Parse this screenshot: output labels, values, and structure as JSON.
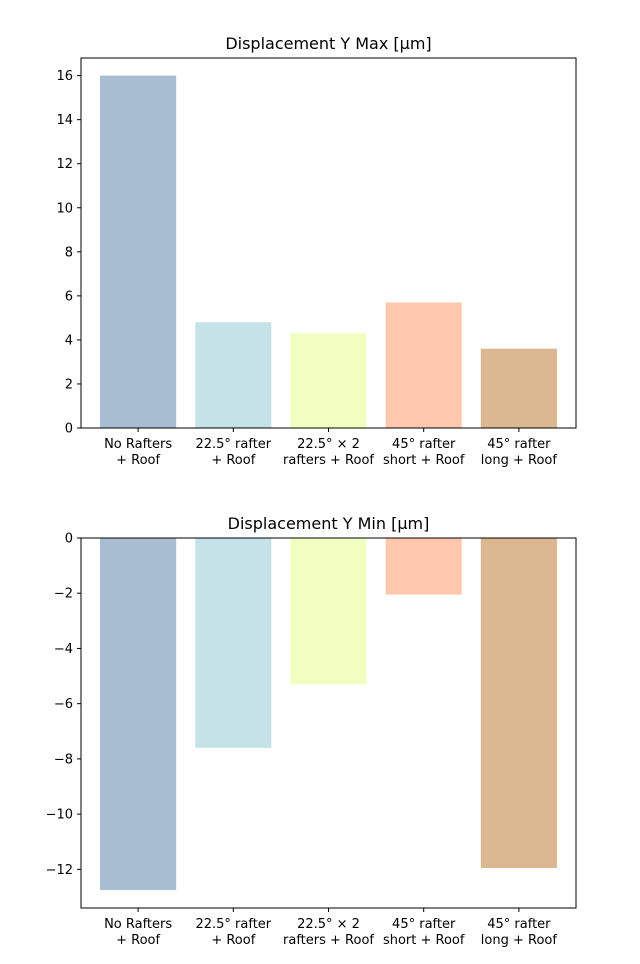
{
  "chart_data": [
    {
      "type": "bar",
      "title": "Displacement Y Max [µm]",
      "xlabel": "",
      "ylabel": "",
      "categories": [
        [
          "No Rafters",
          "+ Roof"
        ],
        [
          "22.5° rafter",
          "+ Roof"
        ],
        [
          "22.5° × 2",
          "rafters + Roof"
        ],
        [
          "45° rafter",
          "short + Roof"
        ],
        [
          "45° rafter",
          "long + Roof"
        ]
      ],
      "values": [
        16.0,
        4.8,
        4.3,
        5.7,
        3.6
      ],
      "colors": [
        "#a8bdd2",
        "#c5e2e8",
        "#f0ffc0",
        "#ffc8ae",
        "#dbb892"
      ],
      "ylim": [
        0,
        16.8
      ],
      "yticks": [
        0,
        2,
        4,
        6,
        8,
        10,
        12,
        14,
        16
      ],
      "ytick_labels": [
        "0",
        "2",
        "4",
        "6",
        "8",
        "10",
        "12",
        "14",
        "16"
      ],
      "grid": false,
      "legend": "none"
    },
    {
      "type": "bar",
      "title": "Displacement Y Min [µm]",
      "xlabel": "",
      "ylabel": "",
      "categories": [
        [
          "No Rafters",
          "+ Roof"
        ],
        [
          "22.5° rafter",
          "+ Roof"
        ],
        [
          "22.5° × 2",
          "rafters + Roof"
        ],
        [
          "45° rafter",
          "short + Roof"
        ],
        [
          "45° rafter",
          "long + Roof"
        ]
      ],
      "values": [
        -12.75,
        -7.6,
        -5.3,
        -2.05,
        -11.95
      ],
      "colors": [
        "#a8bdd2",
        "#c5e2e8",
        "#f0ffc0",
        "#ffc8ae",
        "#dbb892"
      ],
      "ylim": [
        -13.4,
        0
      ],
      "yticks": [
        0,
        -2,
        -4,
        -6,
        -8,
        -10,
        -12
      ],
      "ytick_labels": [
        "0",
        "−2",
        "−4",
        "−6",
        "−8",
        "−10",
        "−12"
      ],
      "grid": false,
      "legend": "none"
    }
  ]
}
